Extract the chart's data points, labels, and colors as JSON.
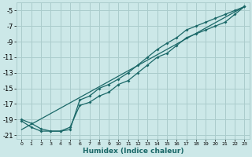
{
  "xlabel": "Humidex (Indice chaleur)",
  "bg_color": "#cce8e8",
  "grid_color": "#aacccc",
  "line_color": "#1a6868",
  "xlim": [
    -0.5,
    23.5
  ],
  "ylim": [
    -21.5,
    -4.0
  ],
  "xticks": [
    0,
    1,
    2,
    3,
    4,
    5,
    6,
    7,
    8,
    9,
    10,
    11,
    12,
    13,
    14,
    15,
    16,
    17,
    18,
    19,
    20,
    21,
    22,
    23
  ],
  "yticks": [
    -5,
    -7,
    -9,
    -11,
    -13,
    -15,
    -17,
    -19,
    -21
  ],
  "line1_x": [
    0,
    1,
    2,
    3,
    4,
    5,
    6,
    7,
    8,
    9,
    10,
    11,
    12,
    13,
    14,
    15,
    16,
    17,
    18,
    19,
    20,
    21,
    22,
    23
  ],
  "line1_y": [
    -19.0,
    -19.5,
    -20.2,
    -20.5,
    -20.5,
    -20.3,
    -16.5,
    -16.0,
    -15.0,
    -14.5,
    -13.8,
    -13.0,
    -12.0,
    -11.0,
    -10.0,
    -9.2,
    -8.5,
    -7.5,
    -7.0,
    -6.5,
    -6.0,
    -5.5,
    -5.0,
    -4.5
  ],
  "line2_x": [
    0,
    1,
    2,
    3,
    4,
    5,
    6,
    7,
    8,
    9,
    10,
    11,
    12,
    13,
    14,
    15,
    16,
    17,
    18,
    19,
    20,
    21,
    22,
    23
  ],
  "line2_y": [
    -19.2,
    -20.0,
    -20.5,
    -20.5,
    -20.5,
    -20.0,
    -17.2,
    -16.8,
    -16.0,
    -15.5,
    -14.5,
    -14.0,
    -13.0,
    -12.0,
    -11.0,
    -10.5,
    -9.5,
    -8.5,
    -8.0,
    -7.5,
    -7.0,
    -6.5,
    -5.5,
    -4.5
  ],
  "line3_x": [
    0,
    23
  ],
  "line3_y": [
    -20.3,
    -4.5
  ]
}
